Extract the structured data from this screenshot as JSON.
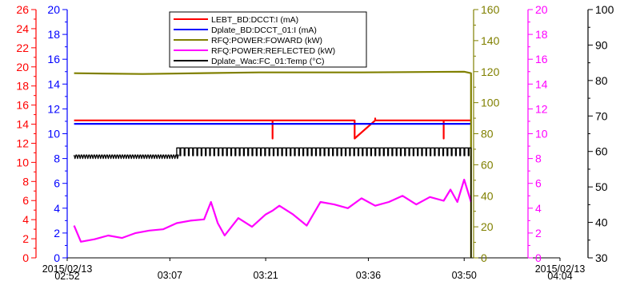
{
  "chart_data": {
    "type": "line",
    "title": "",
    "x_ticks": [
      "2015/02/13\n02:52",
      "03:07",
      "03:21",
      "03:36",
      "03:50",
      "2015/02/13\n04:04"
    ],
    "xlim": [
      "02:52",
      "04:04"
    ],
    "grid": false,
    "legend_position": "top-center",
    "axes": [
      {
        "id": "ax-red",
        "side": "left",
        "color": "#ff0000",
        "min": 0,
        "max": 26,
        "step": 2
      },
      {
        "id": "ax-blue",
        "side": "left",
        "color": "#0000ff",
        "min": 0,
        "max": 20,
        "step": 2
      },
      {
        "id": "ax-olive",
        "side": "right",
        "color": "#808000",
        "min": 0,
        "max": 160,
        "step": 20
      },
      {
        "id": "ax-magenta",
        "side": "right",
        "color": "#ff00ff",
        "min": 0,
        "max": 20,
        "step": 2
      },
      {
        "id": "ax-black",
        "side": "right",
        "color": "#000000",
        "min": 30,
        "max": 100,
        "step": 10
      }
    ],
    "series": [
      {
        "name": "LEBT_BD:DCCT:I (mA)",
        "color": "#ff0000",
        "axis": "ax-red",
        "x": [
          "02:53",
          "03:22",
          "03:22",
          "03:22",
          "03:34",
          "03:34",
          "03:37",
          "03:37",
          "03:37",
          "03:43",
          "03:43",
          "03:47",
          "03:47",
          "03:47",
          "03:51"
        ],
        "y": [
          14.4,
          14.4,
          12.5,
          14.4,
          14.4,
          12.5,
          14.4,
          14.6,
          14.4,
          14.4,
          14.4,
          14.4,
          12.5,
          14.4,
          14.4
        ]
      },
      {
        "name": "Dplate_BD:DCCT_01:I (mA)",
        "color": "#0000ff",
        "axis": "ax-blue",
        "x": [
          "02:53",
          "03:51"
        ],
        "y": [
          10.8,
          10.8
        ]
      },
      {
        "name": "RFQ:POWER:FOWARD (kW)",
        "color": "#808000",
        "axis": "ax-olive",
        "x": [
          "02:53",
          "03:03",
          "03:20",
          "03:35",
          "03:50",
          "03:51",
          "03:51"
        ],
        "y": [
          119,
          118.5,
          119.5,
          119.5,
          120,
          119,
          0
        ]
      },
      {
        "name": "RFQ:POWER:REFLECTED (kW)",
        "color": "#ff00ff",
        "axis": "ax-magenta",
        "x": [
          "02:53",
          "02:54",
          "02:56",
          "02:58",
          "03:00",
          "03:02",
          "03:04",
          "03:06",
          "03:08",
          "03:10",
          "03:12",
          "03:13",
          "03:14",
          "03:15",
          "03:17",
          "03:19",
          "03:21",
          "03:22",
          "03:23",
          "03:25",
          "03:27",
          "03:29",
          "03:31",
          "03:33",
          "03:35",
          "03:37",
          "03:39",
          "03:41",
          "03:43",
          "03:45",
          "03:47",
          "03:48",
          "03:49",
          "03:50",
          "03:51"
        ],
        "y": [
          2.6,
          1.3,
          1.5,
          1.8,
          1.6,
          2.0,
          2.2,
          2.3,
          2.8,
          3.0,
          3.1,
          4.5,
          2.8,
          1.8,
          3.2,
          2.5,
          3.5,
          3.8,
          4.2,
          3.5,
          2.6,
          4.5,
          4.3,
          4.0,
          4.8,
          4.2,
          4.5,
          5.0,
          4.3,
          4.9,
          4.6,
          5.5,
          4.5,
          6.3,
          4.5
        ]
      },
      {
        "name": "Dplate_Wac:FC_01:Temp (°C)",
        "color": "#000000",
        "axis": "ax-black",
        "x": [
          "02:53",
          "03:08",
          "03:08",
          "03:51",
          "03:51"
        ],
        "y": [
          59,
          59,
          61,
          61,
          30
        ],
        "note_pattern": "periodic dips"
      }
    ],
    "legend": [
      {
        "label": "LEBT_BD:DCCT:I (mA)",
        "color": "#ff0000"
      },
      {
        "label": "Dplate_BD:DCCT_01:I (mA)",
        "color": "#0000ff"
      },
      {
        "label": "RFQ:POWER:FOWARD (kW)",
        "color": "#808000"
      },
      {
        "label": "RFQ:POWER:REFLECTED (kW)",
        "color": "#ff00ff"
      },
      {
        "label": "Dplate_Wac:FC_01:Temp (°C)",
        "color": "#000000"
      }
    ]
  }
}
